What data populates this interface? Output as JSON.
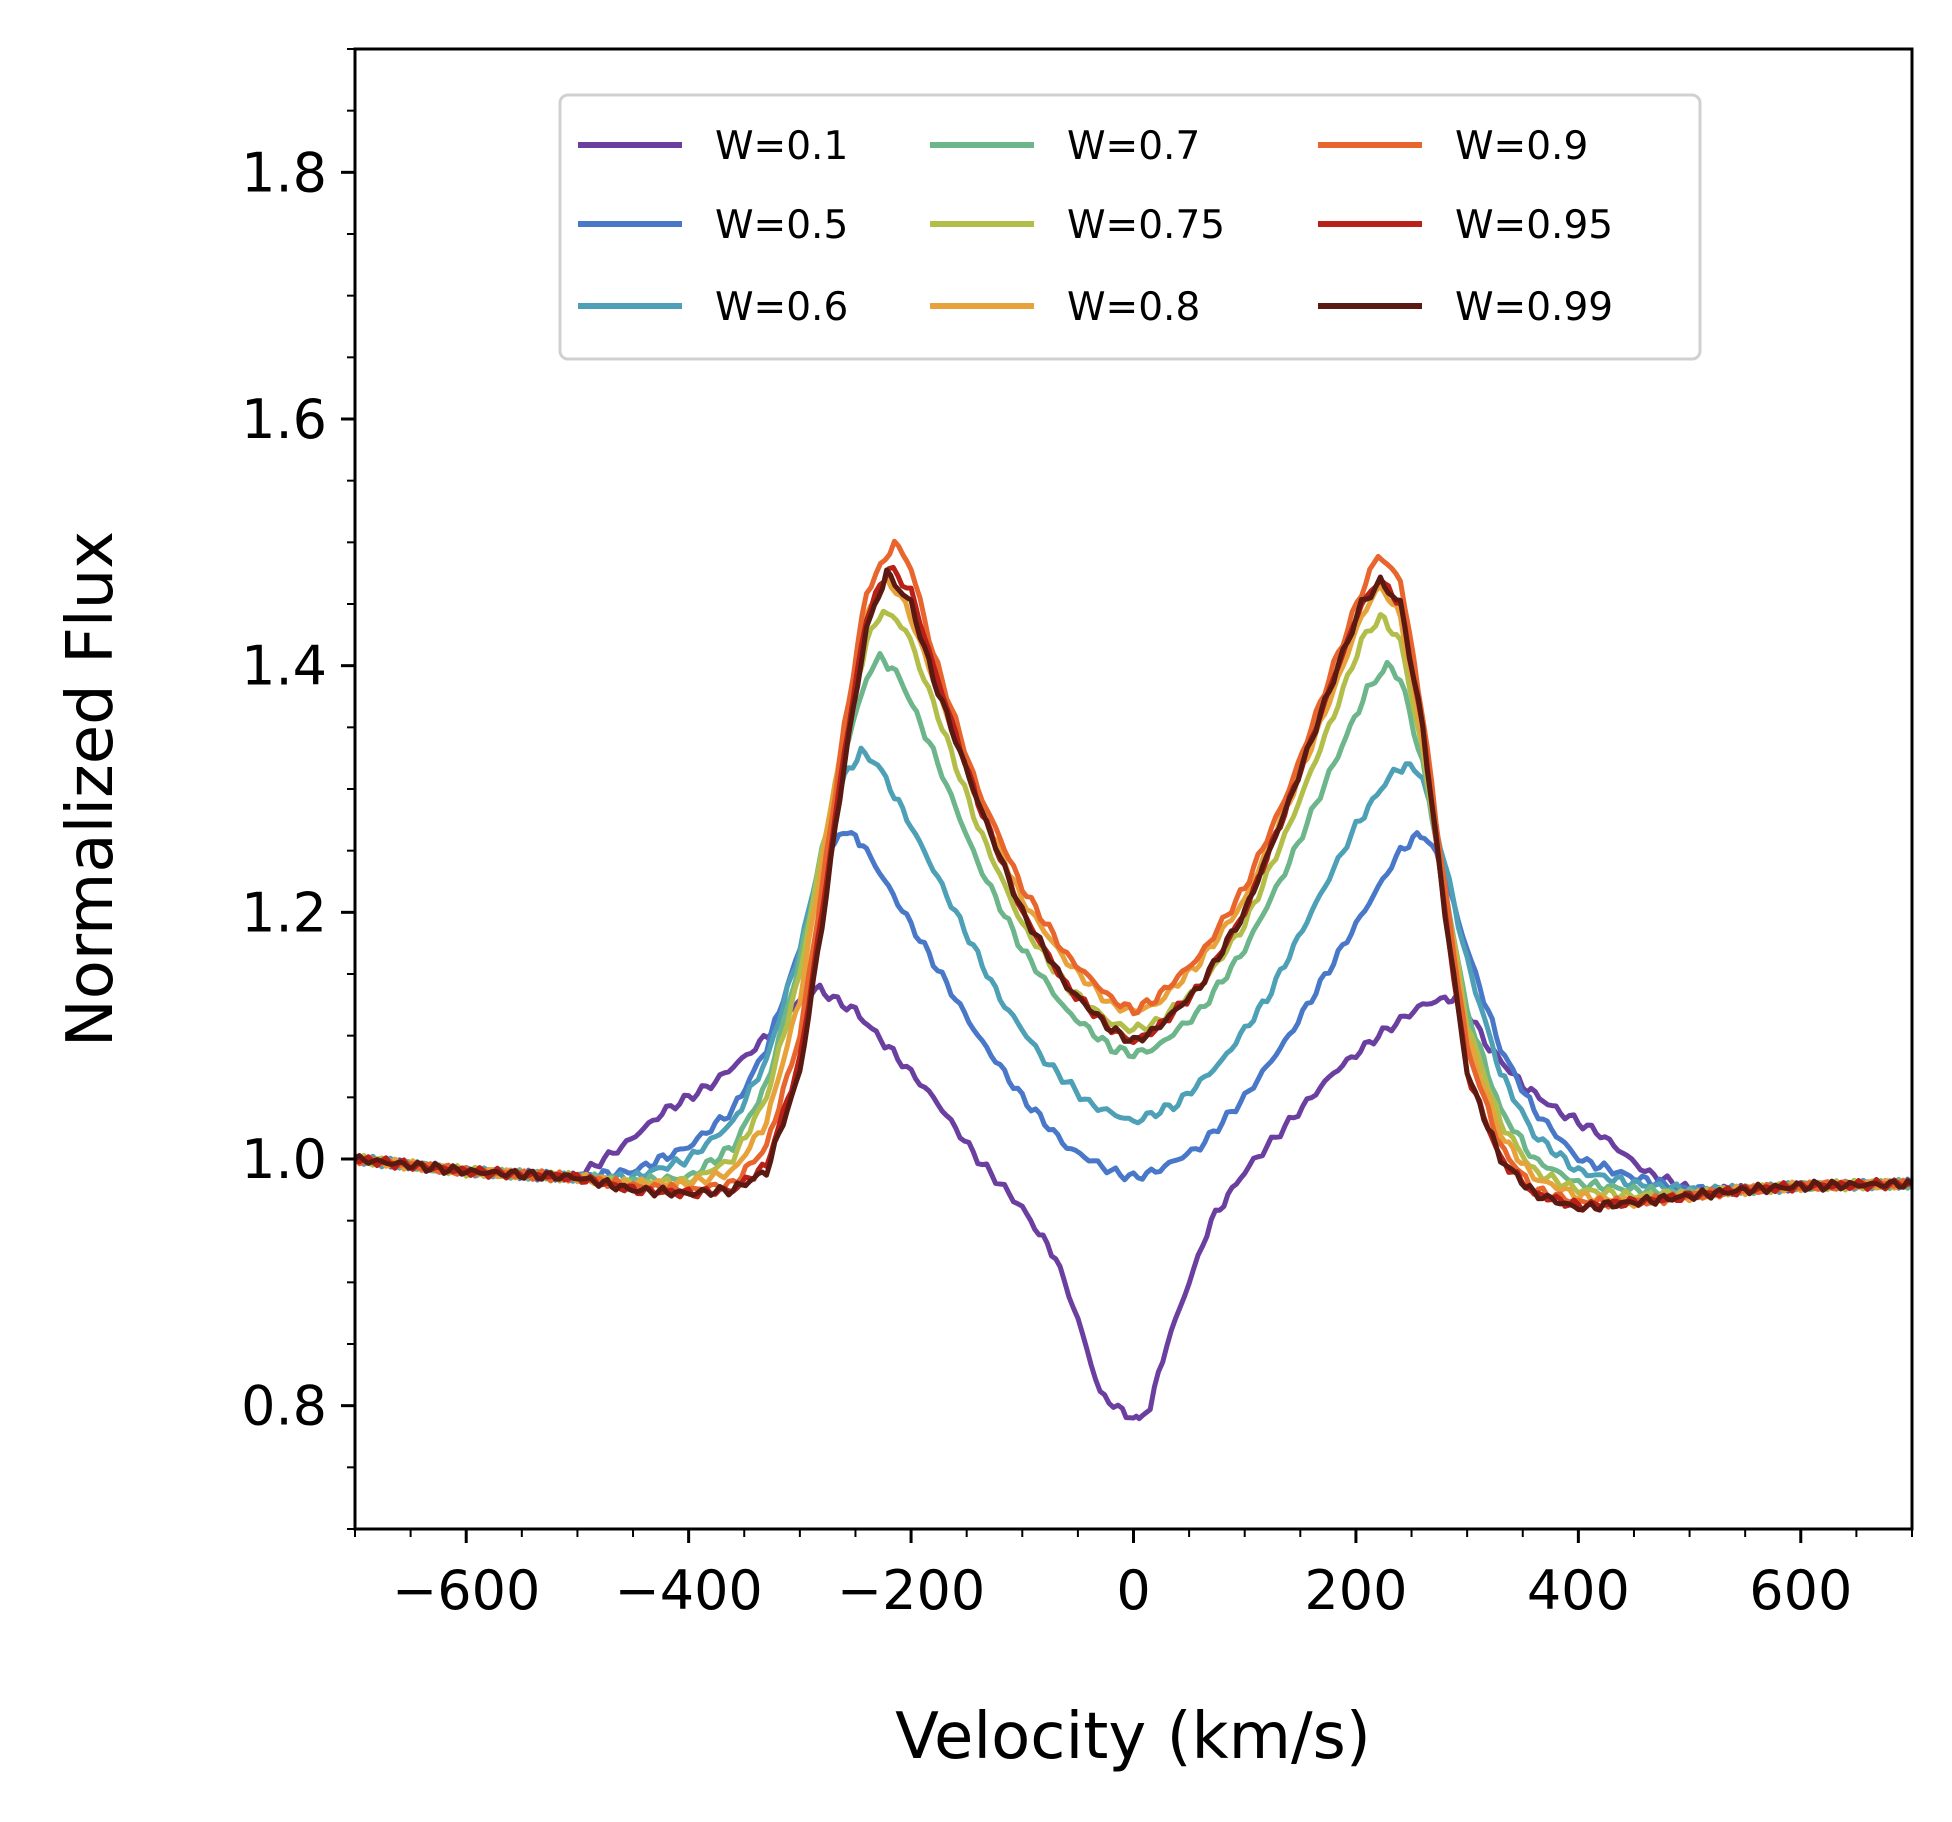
{
  "chart_data": {
    "type": "line",
    "xlabel": "Velocity (km/s)",
    "ylabel": "Normalized Flux",
    "xlim": [
      -700,
      700
    ],
    "ylim": [
      0.7,
      1.9
    ],
    "xticks": [
      -600,
      -400,
      -200,
      0,
      200,
      400,
      600
    ],
    "xtick_labels": [
      "−600",
      "−400",
      "−200",
      "0",
      "200",
      "400",
      "600"
    ],
    "yticks": [
      0.8,
      1.0,
      1.2,
      1.4,
      1.6,
      1.8
    ],
    "ytick_labels": [
      "0.8",
      "1.0",
      "1.2",
      "1.4",
      "1.6",
      "1.8"
    ],
    "grid": false,
    "legend_position": "upper-center",
    "legend_columns": 3,
    "series": [
      {
        "name": "W=0.1",
        "color": "#6b3fa0",
        "x": [
          -700,
          -600,
          -500,
          -460,
          -420,
          -380,
          -340,
          -310,
          -290,
          -282,
          -270,
          -250,
          -220,
          -180,
          -140,
          -100,
          -70,
          -50,
          -30,
          -10,
          0,
          5,
          15,
          30,
          50,
          70,
          100,
          140,
          180,
          220,
          260,
          280,
          290,
          300,
          320,
          350,
          380,
          420,
          460,
          500,
          550,
          600,
          700
        ],
        "y": [
          1.0,
          0.99,
          0.985,
          1.01,
          1.04,
          1.06,
          1.09,
          1.12,
          1.135,
          1.138,
          1.13,
          1.12,
          1.09,
          1.05,
          1.0,
          0.96,
          0.92,
          0.87,
          0.81,
          0.795,
          0.79,
          0.788,
          0.8,
          0.85,
          0.9,
          0.95,
          0.99,
          1.03,
          1.07,
          1.1,
          1.125,
          1.13,
          1.13,
          1.12,
          1.09,
          1.06,
          1.04,
          1.02,
          0.99,
          0.975,
          0.975,
          0.978,
          0.98
        ]
      },
      {
        "name": "W=0.5",
        "color": "#4a78c9",
        "x": [
          -700,
          -600,
          -500,
          -450,
          -400,
          -360,
          -330,
          -300,
          -280,
          -265,
          -250,
          -240,
          -220,
          -180,
          -140,
          -100,
          -60,
          -20,
          0,
          20,
          60,
          100,
          140,
          180,
          220,
          240,
          255,
          265,
          280,
          300,
          330,
          360,
          400,
          450,
          500,
          550,
          600,
          700
        ],
        "y": [
          1.0,
          0.99,
          0.985,
          0.99,
          1.01,
          1.04,
          1.09,
          1.17,
          1.23,
          1.265,
          1.262,
          1.25,
          1.22,
          1.16,
          1.1,
          1.05,
          1.01,
          0.99,
          0.985,
          0.99,
          1.01,
          1.05,
          1.1,
          1.16,
          1.22,
          1.25,
          1.262,
          1.26,
          1.23,
          1.17,
          1.09,
          1.04,
          1.0,
          0.985,
          0.975,
          0.975,
          0.978,
          0.98
        ]
      },
      {
        "name": "W=0.6",
        "color": "#4da0b5",
        "x": [
          -700,
          -600,
          -500,
          -450,
          -400,
          -360,
          -330,
          -300,
          -280,
          -260,
          -245,
          -230,
          -200,
          -160,
          -120,
          -80,
          -40,
          0,
          40,
          80,
          120,
          160,
          200,
          230,
          245,
          260,
          280,
          300,
          330,
          360,
          400,
          450,
          500,
          550,
          600,
          700
        ],
        "y": [
          1.0,
          0.99,
          0.985,
          0.985,
          1.0,
          1.03,
          1.08,
          1.17,
          1.25,
          1.31,
          1.33,
          1.32,
          1.27,
          1.2,
          1.13,
          1.08,
          1.045,
          1.03,
          1.045,
          1.08,
          1.13,
          1.2,
          1.27,
          1.31,
          1.32,
          1.31,
          1.24,
          1.16,
          1.07,
          1.02,
          0.99,
          0.98,
          0.975,
          0.975,
          0.978,
          0.98
        ]
      },
      {
        "name": "W=0.7",
        "color": "#6db58a",
        "x": [
          -700,
          -600,
          -500,
          -450,
          -400,
          -360,
          -330,
          -300,
          -280,
          -260,
          -240,
          -228,
          -210,
          -180,
          -140,
          -100,
          -60,
          -20,
          0,
          20,
          60,
          100,
          140,
          180,
          210,
          228,
          240,
          260,
          280,
          300,
          330,
          360,
          400,
          450,
          500,
          550,
          600,
          700
        ],
        "y": [
          1.0,
          0.99,
          0.985,
          0.982,
          0.985,
          1.01,
          1.06,
          1.16,
          1.25,
          1.33,
          1.39,
          1.408,
          1.39,
          1.33,
          1.24,
          1.17,
          1.12,
          1.09,
          1.085,
          1.09,
          1.12,
          1.17,
          1.24,
          1.32,
          1.38,
          1.4,
          1.39,
          1.32,
          1.22,
          1.12,
          1.04,
          1.0,
          0.98,
          0.975,
          0.972,
          0.975,
          0.978,
          0.98
        ]
      },
      {
        "name": "W=0.75",
        "color": "#b3be4a",
        "x": [
          -700,
          -600,
          -500,
          -450,
          -400,
          -360,
          -330,
          -300,
          -280,
          -260,
          -240,
          -225,
          -205,
          -180,
          -140,
          -100,
          -60,
          -20,
          0,
          20,
          60,
          100,
          140,
          180,
          205,
          222,
          240,
          260,
          280,
          300,
          330,
          360,
          400,
          450,
          500,
          550,
          600,
          700
        ],
        "y": [
          1.0,
          0.99,
          0.985,
          0.98,
          0.982,
          1.0,
          1.05,
          1.15,
          1.25,
          1.34,
          1.42,
          1.445,
          1.43,
          1.37,
          1.27,
          1.19,
          1.14,
          1.11,
          1.105,
          1.11,
          1.14,
          1.19,
          1.27,
          1.36,
          1.42,
          1.44,
          1.42,
          1.33,
          1.22,
          1.11,
          1.03,
          0.99,
          0.975,
          0.97,
          0.972,
          0.975,
          0.978,
          0.98
        ]
      },
      {
        "name": "W=0.8",
        "color": "#e8a23c",
        "x": [
          -700,
          -600,
          -500,
          -450,
          -400,
          -360,
          -330,
          -300,
          -280,
          -260,
          -240,
          -222,
          -205,
          -180,
          -140,
          -100,
          -60,
          -20,
          0,
          20,
          60,
          100,
          140,
          180,
          205,
          222,
          240,
          260,
          280,
          300,
          330,
          360,
          400,
          450,
          500,
          550,
          600,
          700
        ],
        "y": [
          1.0,
          0.99,
          0.985,
          0.98,
          0.98,
          0.99,
          1.03,
          1.13,
          1.24,
          1.35,
          1.44,
          1.47,
          1.45,
          1.39,
          1.29,
          1.21,
          1.16,
          1.125,
          1.12,
          1.125,
          1.16,
          1.21,
          1.29,
          1.38,
          1.44,
          1.465,
          1.44,
          1.34,
          1.22,
          1.1,
          1.02,
          0.985,
          0.97,
          0.965,
          0.97,
          0.975,
          0.978,
          0.98
        ]
      },
      {
        "name": "W=0.9",
        "color": "#e8652e",
        "x": [
          -700,
          -600,
          -500,
          -450,
          -400,
          -360,
          -330,
          -300,
          -280,
          -260,
          -240,
          -215,
          -200,
          -180,
          -140,
          -100,
          -60,
          -20,
          0,
          20,
          60,
          100,
          140,
          180,
          205,
          220,
          240,
          260,
          280,
          300,
          330,
          360,
          400,
          450,
          500,
          550,
          600,
          700
        ],
        "y": [
          1.0,
          0.99,
          0.985,
          0.978,
          0.975,
          0.98,
          1.01,
          1.1,
          1.22,
          1.35,
          1.46,
          1.5,
          1.48,
          1.41,
          1.3,
          1.22,
          1.165,
          1.13,
          1.12,
          1.13,
          1.165,
          1.22,
          1.3,
          1.4,
          1.46,
          1.49,
          1.47,
          1.36,
          1.22,
          1.09,
          1.01,
          0.975,
          0.965,
          0.965,
          0.97,
          0.975,
          0.978,
          0.98
        ]
      },
      {
        "name": "W=0.95",
        "color": "#b82018",
        "x": [
          -700,
          -600,
          -500,
          -450,
          -400,
          -360,
          -330,
          -300,
          -280,
          -260,
          -240,
          -220,
          -200,
          -180,
          -140,
          -100,
          -60,
          -20,
          0,
          20,
          60,
          100,
          140,
          180,
          205,
          222,
          240,
          260,
          280,
          300,
          330,
          360,
          400,
          450,
          500,
          550,
          600,
          700
        ],
        "y": [
          1.0,
          0.99,
          0.985,
          0.975,
          0.972,
          0.975,
          0.995,
          1.08,
          1.2,
          1.33,
          1.44,
          1.48,
          1.46,
          1.4,
          1.29,
          1.2,
          1.14,
          1.105,
          1.095,
          1.105,
          1.14,
          1.2,
          1.29,
          1.39,
          1.45,
          1.47,
          1.45,
          1.35,
          1.2,
          1.07,
          1.0,
          0.972,
          0.962,
          0.965,
          0.97,
          0.975,
          0.978,
          0.98
        ]
      },
      {
        "name": "W=0.99",
        "color": "#5a1a12",
        "x": [
          -700,
          -600,
          -500,
          -450,
          -400,
          -360,
          -330,
          -300,
          -280,
          -260,
          -240,
          -222,
          -200,
          -180,
          -140,
          -100,
          -60,
          -20,
          0,
          20,
          60,
          100,
          140,
          180,
          205,
          222,
          240,
          260,
          280,
          300,
          330,
          360,
          400,
          450,
          500,
          550,
          600,
          700
        ],
        "y": [
          1.0,
          0.99,
          0.985,
          0.975,
          0.972,
          0.975,
          0.99,
          1.07,
          1.19,
          1.32,
          1.43,
          1.475,
          1.45,
          1.39,
          1.29,
          1.2,
          1.14,
          1.105,
          1.095,
          1.105,
          1.14,
          1.2,
          1.29,
          1.39,
          1.45,
          1.468,
          1.45,
          1.35,
          1.2,
          1.07,
          1.0,
          0.972,
          0.96,
          0.965,
          0.97,
          0.975,
          0.978,
          0.98
        ]
      }
    ]
  }
}
